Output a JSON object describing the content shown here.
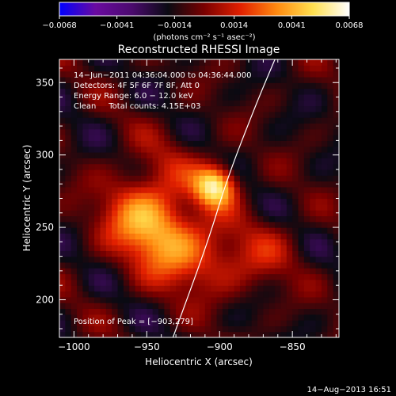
{
  "chart_data": {
    "type": "heatmap",
    "title": "Reconstructed RHESSI Image",
    "xlabel": "Heliocentric X (arcsec)",
    "ylabel": "Heliocentric Y (arcsec)",
    "xlim": [
      -1010,
      -818
    ],
    "ylim": [
      174,
      366
    ],
    "x_ticks": [
      -1000,
      -950,
      -900,
      -850
    ],
    "x_tick_labels": [
      "−1000",
      "−950",
      "−900",
      "−850"
    ],
    "y_ticks": [
      200,
      250,
      300,
      350
    ],
    "y_tick_labels": [
      "200",
      "250",
      "300",
      "350"
    ],
    "colorbar": {
      "min": -0.0068,
      "max": 0.0068,
      "ticks": [
        -0.0068,
        -0.0041,
        -0.0014,
        0.0014,
        0.0041,
        0.0068
      ],
      "tick_labels": [
        "−0.0068",
        "−0.0041",
        "−0.0014",
        "0.0014",
        "0.0041",
        "0.0068"
      ],
      "units": "(photons cm⁻² s⁻¹ asec⁻²)",
      "colors": [
        "#0000ff",
        "#6a0aa0",
        "#4b0a6e",
        "#0a0a12",
        "#7a0000",
        "#e22000",
        "#ff8a10",
        "#ffe050",
        "#ffffff"
      ]
    },
    "annotations": [
      "14−Jun−2011 04:36:04.000 to 04:36:44.000",
      "Detectors: 4F 5F 6F 7F 8F, Att 0",
      "Energy Range: 6.0 − 12.0 keV",
      "Clean     Total counts: 4.15E+03"
    ],
    "peak_label": "Position of Peak = [−903,279]",
    "peak": {
      "x": -903,
      "y": 279,
      "value": 0.0068
    },
    "secondary_sources": [
      {
        "x": -945,
        "y": 250,
        "value": 0.0032
      },
      {
        "x": -960,
        "y": 262,
        "value": 0.0025
      },
      {
        "x": -930,
        "y": 232,
        "value": 0.0025
      },
      {
        "x": -905,
        "y": 227,
        "value": 0.0018
      },
      {
        "x": -870,
        "y": 232,
        "value": 0.0016
      },
      {
        "x": -935,
        "y": 292,
        "value": 0.0012
      }
    ],
    "limb_curve": [
      {
        "x": -932,
        "y": 174
      },
      {
        "x": -908,
        "y": 240
      },
      {
        "x": -895,
        "y": 283
      },
      {
        "x": -875,
        "y": 335
      },
      {
        "x": -862,
        "y": 366
      }
    ],
    "limb_color": "#ffffff"
  },
  "footer": {
    "date": "14−Aug−2013 16:51"
  }
}
